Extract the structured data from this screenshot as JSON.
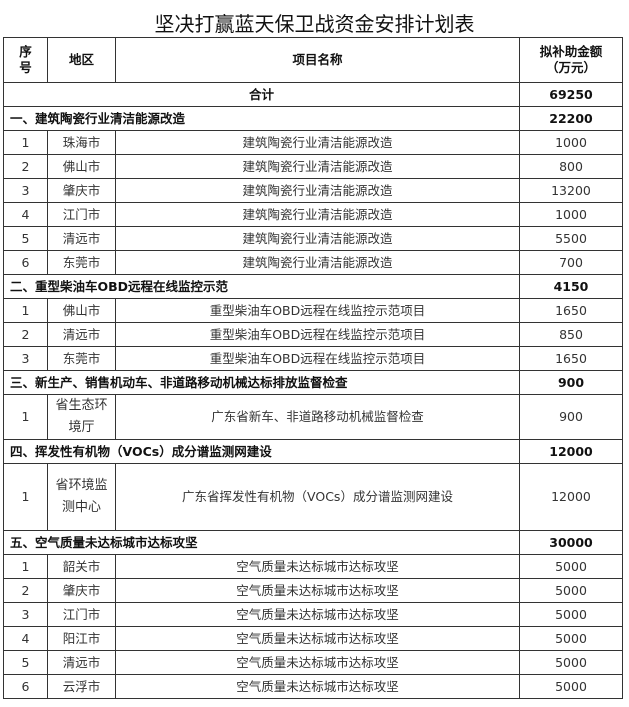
{
  "title": "坚决打赢蓝天保卫战资金安排计划表",
  "header": {
    "no": "序号",
    "region": "地区",
    "project": "项目名称",
    "amount_l1": "拟补助金额",
    "amount_l2": "（万元）"
  },
  "total": {
    "label": "合计",
    "amount": "69250"
  },
  "sections": [
    {
      "title": "一、建筑陶瓷行业清洁能源改造",
      "amount": "22200",
      "rows": [
        {
          "no": "1",
          "region": "珠海市",
          "project": "建筑陶瓷行业清洁能源改造",
          "amount": "1000"
        },
        {
          "no": "2",
          "region": "佛山市",
          "project": "建筑陶瓷行业清洁能源改造",
          "amount": "800"
        },
        {
          "no": "3",
          "region": "肇庆市",
          "project": "建筑陶瓷行业清洁能源改造",
          "amount": "13200"
        },
        {
          "no": "4",
          "region": "江门市",
          "project": "建筑陶瓷行业清洁能源改造",
          "amount": "1000"
        },
        {
          "no": "5",
          "region": "清远市",
          "project": "建筑陶瓷行业清洁能源改造",
          "amount": "5500"
        },
        {
          "no": "6",
          "region": "东莞市",
          "project": "建筑陶瓷行业清洁能源改造",
          "amount": "700"
        }
      ]
    },
    {
      "title": "二、重型柴油车OBD远程在线监控示范",
      "amount": "4150",
      "rows": [
        {
          "no": "1",
          "region": "佛山市",
          "project": "重型柴油车OBD远程在线监控示范项目",
          "amount": "1650"
        },
        {
          "no": "2",
          "region": "清远市",
          "project": "重型柴油车OBD远程在线监控示范项目",
          "amount": "850"
        },
        {
          "no": "3",
          "region": "东莞市",
          "project": "重型柴油车OBD远程在线监控示范项目",
          "amount": "1650"
        }
      ]
    },
    {
      "title": "三、新生产、销售机动车、非道路移动机械达标排放监督检查",
      "amount": "900",
      "rows": [
        {
          "no": "1",
          "region": "省生态环境厅",
          "project": "广东省新车、非道路移动机械监督检查",
          "amount": "900",
          "cls": "tall"
        }
      ]
    },
    {
      "title": "四、挥发性有机物（VOCs）成分谱监测网建设",
      "amount": "12000",
      "rows": [
        {
          "no": "1",
          "region": "省环境监测中心",
          "project": "广东省挥发性有机物（VOCs）成分谱监测网建设",
          "amount": "12000",
          "cls": "taller"
        }
      ]
    },
    {
      "title": "五、空气质量未达标城市达标攻坚",
      "amount": "30000",
      "rows": [
        {
          "no": "1",
          "region": "韶关市",
          "project": "空气质量未达标城市达标攻坚",
          "amount": "5000"
        },
        {
          "no": "2",
          "region": "肇庆市",
          "project": "空气质量未达标城市达标攻坚",
          "amount": "5000"
        },
        {
          "no": "3",
          "region": "江门市",
          "project": "空气质量未达标城市达标攻坚",
          "amount": "5000"
        },
        {
          "no": "4",
          "region": "阳江市",
          "project": "空气质量未达标城市达标攻坚",
          "amount": "5000"
        },
        {
          "no": "5",
          "region": "清远市",
          "project": "空气质量未达标城市达标攻坚",
          "amount": "5000"
        },
        {
          "no": "6",
          "region": "云浮市",
          "project": "空气质量未达标城市达标攻坚",
          "amount": "5000"
        }
      ]
    }
  ]
}
